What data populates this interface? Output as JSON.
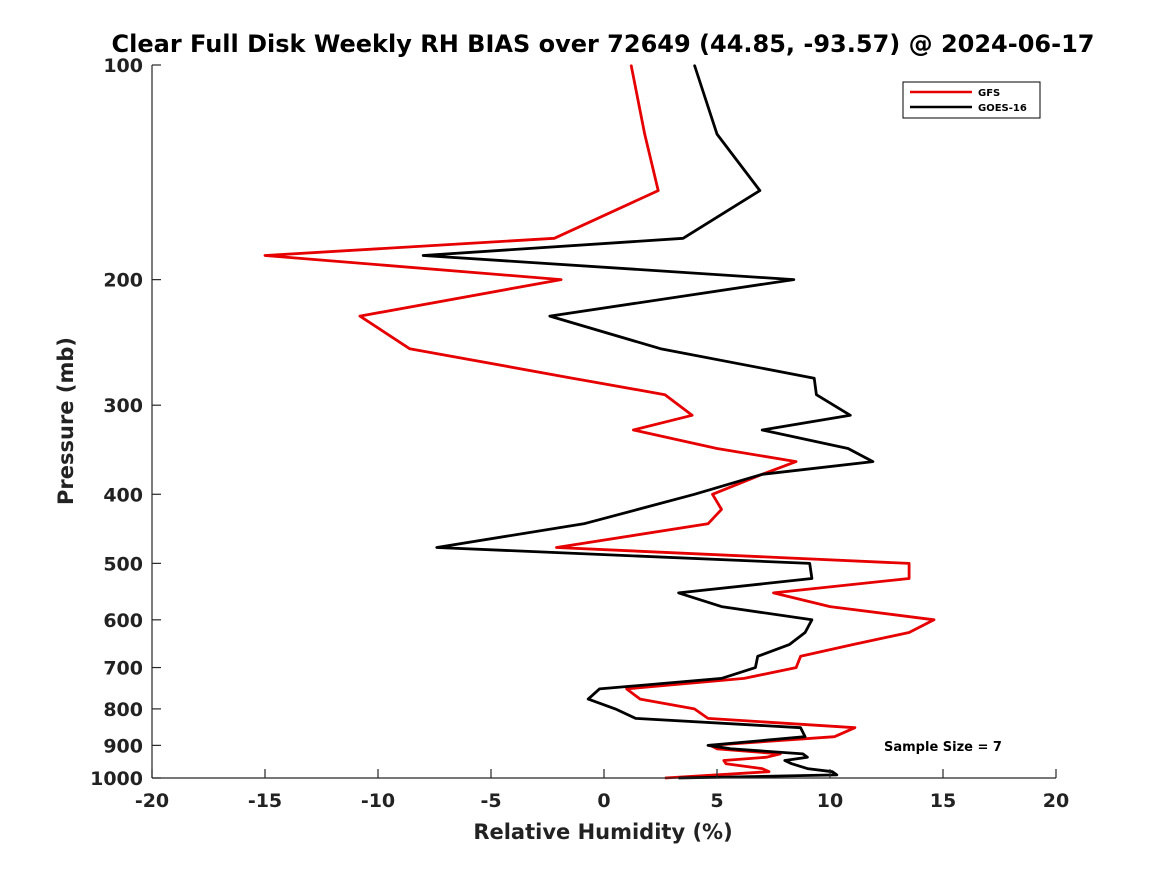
{
  "chart_data": {
    "type": "line",
    "title": "Clear Full Disk Weekly RH BIAS over 72649 (44.85, -93.57) @ 2024-06-17",
    "xlabel": "Relative Humidity (%)",
    "ylabel": "Pressure (mb)",
    "xlim": [
      -20,
      20
    ],
    "ylim": [
      1000,
      100
    ],
    "y_scale": "log",
    "x_ticks": [
      "-20",
      "-15",
      "-10",
      "-5",
      "0",
      "5",
      "10",
      "15",
      "20"
    ],
    "y_ticks": [
      "100",
      "200",
      "300",
      "400",
      "500",
      "600",
      "700",
      "800",
      "900",
      "1000"
    ],
    "grid": false,
    "legend_position": "top-right",
    "series": [
      {
        "name": "GFS",
        "color": "#e60000",
        "points": [
          {
            "rh": 1.2,
            "p": 100
          },
          {
            "rh": 1.8,
            "p": 125
          },
          {
            "rh": 2.4,
            "p": 150
          },
          {
            "rh": -2.2,
            "p": 175
          },
          {
            "rh": -15.0,
            "p": 185
          },
          {
            "rh": -1.9,
            "p": 200
          },
          {
            "rh": -10.8,
            "p": 225
          },
          {
            "rh": -8.6,
            "p": 250
          },
          {
            "rh": -1.4,
            "p": 275
          },
          {
            "rh": 2.7,
            "p": 290
          },
          {
            "rh": 3.9,
            "p": 310
          },
          {
            "rh": 1.3,
            "p": 325
          },
          {
            "rh": 5.0,
            "p": 345
          },
          {
            "rh": 8.5,
            "p": 360
          },
          {
            "rh": 7.0,
            "p": 375
          },
          {
            "rh": 4.8,
            "p": 400
          },
          {
            "rh": 5.2,
            "p": 420
          },
          {
            "rh": 4.6,
            "p": 440
          },
          {
            "rh": -2.1,
            "p": 475
          },
          {
            "rh": 13.5,
            "p": 500
          },
          {
            "rh": 13.5,
            "p": 525
          },
          {
            "rh": 7.5,
            "p": 550
          },
          {
            "rh": 10.0,
            "p": 575
          },
          {
            "rh": 14.6,
            "p": 600
          },
          {
            "rh": 13.5,
            "p": 625
          },
          {
            "rh": 11.0,
            "p": 650
          },
          {
            "rh": 8.7,
            "p": 675
          },
          {
            "rh": 8.5,
            "p": 700
          },
          {
            "rh": 6.2,
            "p": 725
          },
          {
            "rh": 1.0,
            "p": 750
          },
          {
            "rh": 1.6,
            "p": 775
          },
          {
            "rh": 4.0,
            "p": 800
          },
          {
            "rh": 4.6,
            "p": 825
          },
          {
            "rh": 11.1,
            "p": 850
          },
          {
            "rh": 10.2,
            "p": 875
          },
          {
            "rh": 4.7,
            "p": 900
          },
          {
            "rh": 5.0,
            "p": 910
          },
          {
            "rh": 7.8,
            "p": 925
          },
          {
            "rh": 7.2,
            "p": 935
          },
          {
            "rh": 5.3,
            "p": 945
          },
          {
            "rh": 5.4,
            "p": 955
          },
          {
            "rh": 7.0,
            "p": 970
          },
          {
            "rh": 7.3,
            "p": 980
          },
          {
            "rh": 2.7,
            "p": 1000
          }
        ]
      },
      {
        "name": "GOES-16",
        "color": "#000000",
        "points": [
          {
            "rh": 4.0,
            "p": 100
          },
          {
            "rh": 5.0,
            "p": 125
          },
          {
            "rh": 6.9,
            "p": 150
          },
          {
            "rh": 3.5,
            "p": 175
          },
          {
            "rh": -8.0,
            "p": 185
          },
          {
            "rh": 8.4,
            "p": 200
          },
          {
            "rh": -2.4,
            "p": 225
          },
          {
            "rh": 2.5,
            "p": 250
          },
          {
            "rh": 9.3,
            "p": 275
          },
          {
            "rh": 9.4,
            "p": 290
          },
          {
            "rh": 10.9,
            "p": 310
          },
          {
            "rh": 7.0,
            "p": 325
          },
          {
            "rh": 10.8,
            "p": 345
          },
          {
            "rh": 11.9,
            "p": 360
          },
          {
            "rh": 7.0,
            "p": 375
          },
          {
            "rh": 4.0,
            "p": 400
          },
          {
            "rh": 1.5,
            "p": 420
          },
          {
            "rh": -0.9,
            "p": 440
          },
          {
            "rh": -7.4,
            "p": 475
          },
          {
            "rh": 9.1,
            "p": 500
          },
          {
            "rh": 9.2,
            "p": 525
          },
          {
            "rh": 3.3,
            "p": 550
          },
          {
            "rh": 5.2,
            "p": 575
          },
          {
            "rh": 9.2,
            "p": 600
          },
          {
            "rh": 8.9,
            "p": 625
          },
          {
            "rh": 8.2,
            "p": 650
          },
          {
            "rh": 6.8,
            "p": 675
          },
          {
            "rh": 6.7,
            "p": 700
          },
          {
            "rh": 5.2,
            "p": 725
          },
          {
            "rh": -0.2,
            "p": 750
          },
          {
            "rh": -0.7,
            "p": 775
          },
          {
            "rh": 0.5,
            "p": 800
          },
          {
            "rh": 1.4,
            "p": 825
          },
          {
            "rh": 8.7,
            "p": 850
          },
          {
            "rh": 8.9,
            "p": 875
          },
          {
            "rh": 4.6,
            "p": 900
          },
          {
            "rh": 5.6,
            "p": 910
          },
          {
            "rh": 8.8,
            "p": 925
          },
          {
            "rh": 9.0,
            "p": 935
          },
          {
            "rh": 8.0,
            "p": 945
          },
          {
            "rh": 8.3,
            "p": 955
          },
          {
            "rh": 9.0,
            "p": 970
          },
          {
            "rh": 10.1,
            "p": 980
          },
          {
            "rh": 10.3,
            "p": 990
          },
          {
            "rh": 3.3,
            "p": 1000
          }
        ]
      }
    ],
    "annotations": [
      "Sample Size = 7"
    ]
  }
}
